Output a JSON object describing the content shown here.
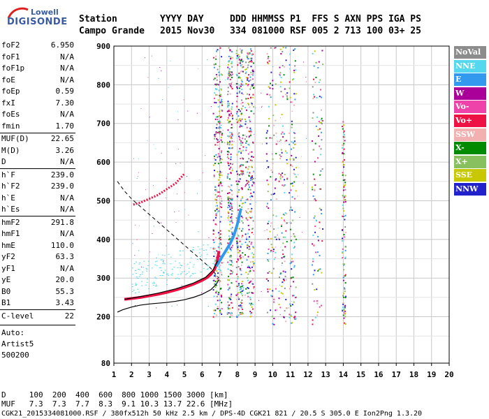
{
  "header": {
    "station_label": "Station",
    "station_name": "Campo Grande",
    "date_label": "YYYY DAY",
    "date_value": "2015 Nov30",
    "codes_label": "DDD HHMMSS P1  FFS S AXN PPS IGA PS",
    "codes_value": "334 081000 RSF 005 2 713 100 03+ 25"
  },
  "logo": {
    "line1": "Lowell",
    "line2": "DIGISONDE"
  },
  "params": [
    {
      "k": "foF2",
      "v": "6.950"
    },
    {
      "k": "foF1",
      "v": "N/A"
    },
    {
      "k": "foF1p",
      "v": "N/A"
    },
    {
      "k": "foE",
      "v": "N/A"
    },
    {
      "k": "foEp",
      "v": "0.59"
    },
    {
      "k": "fxI",
      "v": "7.30"
    },
    {
      "k": "foEs",
      "v": "N/A"
    },
    {
      "k": "fmin",
      "v": "1.70"
    },
    {
      "k": "MUF(D)",
      "v": "22.65"
    },
    {
      "k": "M(D)",
      "v": "3.26"
    },
    {
      "k": "D",
      "v": "N/A"
    },
    {
      "k": "h`F",
      "v": "239.0"
    },
    {
      "k": "h`F2",
      "v": "239.0"
    },
    {
      "k": "h`E",
      "v": "N/A"
    },
    {
      "k": "h`Es",
      "v": "N/A"
    },
    {
      "k": "hmF2",
      "v": "291.8"
    },
    {
      "k": "hmF1",
      "v": "N/A"
    },
    {
      "k": "hmE",
      "v": "110.0"
    },
    {
      "k": "yF2",
      "v": "63.3"
    },
    {
      "k": "yF1",
      "v": "N/A"
    },
    {
      "k": "yE",
      "v": "20.0"
    },
    {
      "k": "B0",
      "v": "55.3"
    },
    {
      "k": "B1",
      "v": "3.43"
    },
    {
      "k": "C-level",
      "v": "22"
    }
  ],
  "auto": {
    "line1": "Auto:",
    "line2": "Artist5",
    "line3": "500200"
  },
  "legend": [
    {
      "label": "NoVal",
      "color": "#8c8c8c"
    },
    {
      "label": "NNE",
      "color": "#55d8ee"
    },
    {
      "label": "E",
      "color": "#3399ee"
    },
    {
      "label": "W",
      "color": "#aa0099"
    },
    {
      "label": "Vo-",
      "color": "#ee44aa"
    },
    {
      "label": "Vo+",
      "color": "#ee1144"
    },
    {
      "label": "SSW",
      "color": "#f2b0b0"
    },
    {
      "label": "X-",
      "color": "#008a00"
    },
    {
      "label": "X+",
      "color": "#88c060"
    },
    {
      "label": "SSE",
      "color": "#c8c800"
    },
    {
      "label": "NNW",
      "color": "#2222cc"
    }
  ],
  "bottom": {
    "d_line": "D     100  200  400  600  800 1000 1500 3000 [km]",
    "muf_line": "MUF   7.3  7.3  7.7  8.3  9.1 10.3 13.7 22.6 [MHz]"
  },
  "footer": "CGK21_2015334081000.RSF / 380fx512h 50 kHz 2.5 km / DPS-4D CGK21 821 / 20.5 S 305.0 E Ion2Png 1.3.20",
  "chart_data": {
    "type": "scatter",
    "x_ticks": [
      "1",
      "2",
      "3",
      "4",
      "5",
      "6",
      "7",
      "8",
      "9",
      "10",
      "11",
      "12",
      "13",
      "14",
      "15",
      "16",
      "17",
      "18",
      "19",
      "20"
    ],
    "y_ticks": [
      "80",
      "200",
      "300",
      "400",
      "500",
      "600",
      "700",
      "800",
      "900"
    ],
    "xlim": [
      1,
      20
    ],
    "ylim": [
      80,
      900
    ],
    "series": [
      {
        "role": "o-trace",
        "color": "#ee1144",
        "x": [
          1.6,
          2.0,
          2.5,
          3.0,
          3.5,
          4.0,
          4.5,
          5.0,
          5.5,
          6.0,
          6.3,
          6.5,
          6.7,
          6.85,
          6.95
        ],
        "y": [
          245,
          247,
          250,
          254,
          258,
          263,
          269,
          276,
          284,
          294,
          302,
          310,
          322,
          340,
          370
        ]
      },
      {
        "role": "x-trace",
        "color": "#3399ee",
        "x": [
          6.8,
          7.0,
          7.2,
          7.4,
          7.6,
          7.8,
          8.0,
          8.2
        ],
        "y": [
          330,
          345,
          360,
          375,
          390,
          410,
          440,
          480
        ]
      },
      {
        "role": "upper-spread-f",
        "color": "#ee1144",
        "x": [
          2.1,
          2.5,
          3.0,
          3.5,
          4.0,
          4.5,
          5.0
        ],
        "y": [
          490,
          495,
          505,
          515,
          530,
          545,
          570
        ]
      },
      {
        "role": "profile-solid",
        "color": "#000000",
        "x": [
          1.2,
          1.5,
          2.0,
          2.5,
          3.0,
          3.5,
          4.0,
          4.5,
          5.0,
          5.5,
          6.0,
          6.5,
          6.8,
          6.95
        ],
        "y": [
          212,
          218,
          225,
          230,
          233,
          235,
          237,
          240,
          244,
          250,
          258,
          270,
          284,
          296
        ]
      },
      {
        "role": "profile-upper",
        "color": "#000000",
        "x": [
          1.6,
          2.5,
          3.5,
          4.5,
          5.5,
          6.2,
          6.6,
          6.9
        ],
        "y": [
          245,
          252,
          261,
          272,
          287,
          302,
          320,
          345
        ]
      },
      {
        "role": "profile-dashed",
        "color": "#000000",
        "x": [
          1.2,
          1.6,
          2.0,
          2.5,
          3.0,
          3.5,
          4.0,
          4.5,
          5.0,
          5.5,
          6.0,
          6.5,
          6.95
        ],
        "y": [
          550,
          525,
          505,
          485,
          465,
          445,
          425,
          405,
          385,
          365,
          345,
          325,
          300
        ]
      }
    ]
  }
}
